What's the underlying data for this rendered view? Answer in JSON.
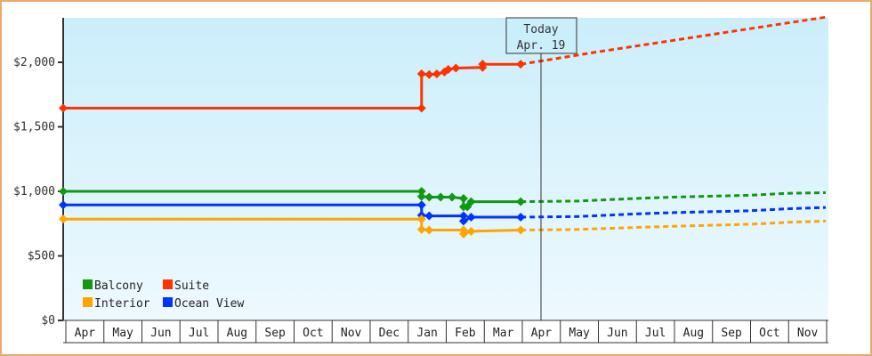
{
  "chart_data": {
    "type": "line",
    "title": "",
    "xlabel": "",
    "ylabel": "",
    "ylim": [
      0,
      2350
    ],
    "y_ticks": [
      "$0",
      "$500",
      "$1,000",
      "$1,500",
      "$2,000"
    ],
    "y_tick_values": [
      0,
      500,
      1000,
      1500,
      2000
    ],
    "x_tick_labels": [
      "Apr",
      "May",
      "Jun",
      "Jul",
      "Aug",
      "Sep",
      "Oct",
      "Nov",
      "Dec",
      "Jan",
      "Feb",
      "Mar",
      "Apr",
      "May",
      "Jun",
      "Jul",
      "Aug",
      "Sep",
      "Oct",
      "Nov"
    ],
    "grid": false,
    "legend_position": "bottom-left inside",
    "today_marker": {
      "line1": "Today",
      "line2": "Apr. 19"
    },
    "series": [
      {
        "name": "Balcony",
        "color": "#119911",
        "historical": [
          [
            0,
            1000
          ],
          [
            9.4,
            1000
          ],
          [
            9.4,
            960
          ],
          [
            9.6,
            955
          ],
          [
            9.9,
            955
          ],
          [
            10.2,
            955
          ],
          [
            10.5,
            945
          ],
          [
            10.5,
            880
          ],
          [
            10.6,
            880
          ],
          [
            10.7,
            920
          ],
          [
            12.0,
            920
          ]
        ],
        "projected": [
          [
            12.0,
            920
          ],
          [
            13.5,
            925
          ],
          [
            15,
            945
          ],
          [
            16,
            955
          ],
          [
            18,
            970
          ],
          [
            19,
            985
          ],
          [
            20,
            990
          ]
        ]
      },
      {
        "name": "Suite",
        "color": "#ff3300",
        "historical": [
          [
            0,
            1645
          ],
          [
            9.4,
            1645
          ],
          [
            9.4,
            1910
          ],
          [
            9.6,
            1905
          ],
          [
            9.8,
            1910
          ],
          [
            10.0,
            1925
          ],
          [
            10.1,
            1945
          ],
          [
            10.3,
            1955
          ],
          [
            11.0,
            1960
          ],
          [
            11.0,
            1985
          ],
          [
            12.0,
            1985
          ]
        ],
        "projected": [
          [
            12.0,
            1985
          ],
          [
            14,
            2080
          ],
          [
            16,
            2170
          ],
          [
            18,
            2260
          ],
          [
            20,
            2350
          ]
        ]
      },
      {
        "name": "Interior",
        "color": "#ffa500",
        "historical": [
          [
            0,
            785
          ],
          [
            9.4,
            785
          ],
          [
            9.4,
            705
          ],
          [
            9.6,
            700
          ],
          [
            10.5,
            700
          ],
          [
            10.5,
            670
          ],
          [
            10.7,
            690
          ],
          [
            12.0,
            700
          ]
        ],
        "projected": [
          [
            12.0,
            700
          ],
          [
            13.5,
            705
          ],
          [
            15,
            720
          ],
          [
            16,
            730
          ],
          [
            18,
            745
          ],
          [
            19,
            760
          ],
          [
            20,
            770
          ]
        ]
      },
      {
        "name": "Ocean View",
        "color": "#0033ff",
        "historical": [
          [
            0,
            895
          ],
          [
            9.4,
            895
          ],
          [
            9.4,
            815
          ],
          [
            9.6,
            810
          ],
          [
            10.5,
            810
          ],
          [
            10.5,
            770
          ],
          [
            10.7,
            800
          ],
          [
            12.0,
            800
          ]
        ],
        "projected": [
          [
            12.0,
            800
          ],
          [
            13.5,
            805
          ],
          [
            15,
            825
          ],
          [
            16,
            835
          ],
          [
            18,
            850
          ],
          [
            19,
            865
          ],
          [
            20,
            875
          ]
        ]
      }
    ]
  },
  "legend": {
    "items": [
      {
        "label": "Balcony",
        "color": "#119911"
      },
      {
        "label": "Suite",
        "color": "#ff3300"
      },
      {
        "label": "Interior",
        "color": "#ffa500"
      },
      {
        "label": "Ocean View",
        "color": "#0033ff"
      }
    ]
  }
}
